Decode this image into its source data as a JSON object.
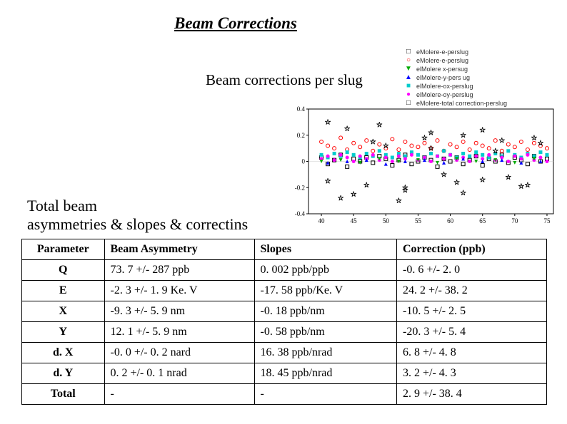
{
  "title": "Beam Corrections",
  "subtitle": "Beam corrections per slug",
  "section_title_line1": "Total beam",
  "section_title_line2": "asymmetries & slopes & correctins",
  "legend": {
    "items": [
      {
        "marker": "□",
        "color": "#000000",
        "label": "eMolere-e-perslug"
      },
      {
        "marker": "○",
        "color": "#ff0000",
        "label": "eMolere-e-perslug"
      },
      {
        "marker": "▼",
        "color": "#00aa00",
        "label": "elMolere x-persug"
      },
      {
        "marker": "▲",
        "color": "#0000ff",
        "label": "elMolere-y-pers ug"
      },
      {
        "marker": "■",
        "color": "#00cccc",
        "label": "elMolere-ox-perslug"
      },
      {
        "marker": "●",
        "color": "#ff00ff",
        "label": "elMolere-oy-perslug"
      },
      {
        "marker": "□",
        "color": "#000000",
        "label": "eMolere-total correction-perslug"
      }
    ]
  },
  "chart": {
    "type": "scatter",
    "xlim": [
      38,
      76
    ],
    "ylim": [
      -0.4,
      0.4
    ],
    "xticks": [
      40,
      45,
      50,
      55,
      60,
      65,
      70,
      75
    ],
    "yticks": [
      -0.4,
      -0.2,
      0,
      0.2,
      0.4
    ],
    "yticks_labels": [
      "-0.4",
      "-0.2",
      "0",
      "0.2",
      "0.4"
    ],
    "grid_color": "#e0e0e0",
    "background_color": "#ffffff",
    "axis_color": "#000000",
    "tick_fontsize": 9,
    "series": [
      {
        "name": "black-open-square",
        "color": "#000000",
        "marker": "square-open",
        "x": [
          40,
          41,
          42,
          43,
          44,
          45,
          46,
          47,
          48,
          49,
          50,
          51,
          52,
          53,
          54,
          55,
          56,
          57,
          58,
          59,
          60,
          61,
          62,
          63,
          64,
          65,
          66,
          67,
          68,
          69,
          70,
          71,
          72,
          73,
          74,
          75
        ],
        "y": [
          0.03,
          -0.02,
          0.01,
          0.05,
          -0.04,
          0.02,
          0.0,
          0.03,
          -0.01,
          0.04,
          0.02,
          -0.03,
          0.01,
          0.05,
          -0.02,
          0.0,
          0.03,
          0.01,
          -0.04,
          0.02,
          0.0,
          0.03,
          -0.02,
          0.01,
          0.04,
          -0.03,
          0.02,
          0.0,
          0.05,
          -0.01,
          0.03,
          0.01,
          -0.02,
          0.04,
          0.0,
          0.02
        ]
      },
      {
        "name": "red-open-circle",
        "color": "#ff0000",
        "marker": "circle-open",
        "x": [
          40,
          41,
          42,
          43,
          44,
          45,
          46,
          47,
          48,
          49,
          50,
          51,
          52,
          53,
          54,
          55,
          56,
          57,
          58,
          59,
          60,
          61,
          62,
          63,
          64,
          65,
          66,
          67,
          68,
          69,
          70,
          71,
          72,
          73,
          74,
          75
        ],
        "y": [
          0.15,
          0.12,
          0.1,
          0.18,
          0.09,
          0.14,
          0.11,
          0.16,
          0.08,
          0.13,
          0.1,
          0.17,
          0.09,
          0.15,
          0.12,
          0.11,
          0.14,
          0.1,
          0.16,
          0.08,
          0.13,
          0.11,
          0.15,
          0.09,
          0.14,
          0.12,
          0.1,
          0.16,
          0.08,
          0.13,
          0.11,
          0.15,
          0.09,
          0.14,
          0.12,
          0.1
        ]
      },
      {
        "name": "cyan-square",
        "color": "#00cccc",
        "marker": "square",
        "x": [
          40,
          41,
          42,
          43,
          44,
          45,
          46,
          47,
          48,
          49,
          50,
          51,
          52,
          53,
          54,
          55,
          56,
          57,
          58,
          59,
          60,
          61,
          62,
          63,
          64,
          65,
          66,
          67,
          68,
          69,
          70,
          71,
          72,
          73,
          74,
          75
        ],
        "y": [
          0.05,
          0.03,
          0.06,
          0.04,
          0.07,
          0.05,
          0.03,
          0.06,
          0.04,
          0.08,
          0.05,
          0.03,
          0.06,
          0.04,
          0.07,
          0.05,
          0.03,
          0.06,
          0.04,
          0.08,
          0.05,
          0.03,
          0.06,
          0.04,
          0.07,
          0.05,
          0.03,
          0.06,
          0.04,
          0.08,
          0.05,
          0.03,
          0.06,
          0.04,
          0.07,
          0.05
        ]
      },
      {
        "name": "magenta-circle",
        "color": "#ff00ff",
        "marker": "circle",
        "x": [
          40,
          41,
          42,
          43,
          44,
          45,
          46,
          47,
          48,
          49,
          50,
          51,
          52,
          53,
          54,
          55,
          56,
          57,
          58,
          59,
          60,
          61,
          62,
          63,
          64,
          65,
          66,
          67,
          68,
          69,
          70,
          71,
          72,
          73,
          74,
          75
        ],
        "y": [
          0.02,
          0.04,
          0.01,
          0.05,
          0.03,
          0.0,
          0.04,
          0.02,
          0.05,
          0.01,
          0.03,
          0.0,
          0.04,
          0.02,
          0.05,
          0.01,
          0.03,
          0.0,
          0.04,
          0.02,
          0.05,
          0.01,
          0.03,
          0.0,
          0.04,
          0.02,
          0.05,
          0.01,
          0.03,
          0.0,
          0.04,
          0.02,
          0.05,
          0.01,
          0.03,
          0.0
        ]
      },
      {
        "name": "black-star",
        "color": "#000000",
        "marker": "star-open",
        "x": [
          41,
          44,
          47,
          50,
          53,
          56,
          59,
          62,
          65,
          68,
          71,
          74,
          41,
          45,
          49,
          53,
          57,
          61,
          65,
          69,
          73,
          43,
          48,
          52,
          57,
          62,
          67,
          72
        ],
        "y": [
          -0.15,
          0.25,
          -0.18,
          0.12,
          -0.22,
          0.18,
          -0.1,
          0.2,
          -0.14,
          0.16,
          -0.19,
          0.14,
          0.3,
          -0.25,
          0.28,
          -0.2,
          0.22,
          -0.16,
          0.24,
          -0.12,
          0.18,
          -0.28,
          0.15,
          -0.3,
          0.1,
          -0.24,
          0.08,
          -0.18
        ]
      },
      {
        "name": "green-triangle-down",
        "color": "#00aa00",
        "marker": "triangle-down",
        "x": [
          40,
          43,
          46,
          49,
          52,
          55,
          58,
          61,
          64,
          67,
          70,
          73
        ],
        "y": [
          0.0,
          0.01,
          -0.01,
          0.02,
          0.0,
          0.01,
          -0.01,
          0.02,
          0.0,
          0.01,
          -0.01,
          0.02
        ]
      },
      {
        "name": "blue-triangle-up",
        "color": "#0000ff",
        "marker": "triangle-up",
        "x": [
          41,
          44,
          47,
          50,
          53,
          56,
          59,
          62,
          65,
          68,
          71,
          74
        ],
        "y": [
          -0.01,
          0.0,
          0.01,
          -0.02,
          0.0,
          0.01,
          -0.01,
          0.02,
          0.0,
          0.01,
          -0.01,
          0.0
        ]
      }
    ]
  },
  "table": {
    "headers": [
      "Parameter",
      "Beam Asymmetry",
      "Slopes",
      "Correction (ppb)"
    ],
    "rows": [
      [
        "Q",
        "73. 7 +/- 287  ppb",
        "0. 002  ppb/ppb",
        "-0. 6 +/- 2. 0"
      ],
      [
        "E",
        "-2. 3 +/- 1. 9     Ke. V",
        "-17. 58 ppb/Ke. V",
        "24. 2 +/- 38. 2"
      ],
      [
        "X",
        "-9. 3 +/- 5. 9     nm",
        "-0. 18   ppb/nm",
        "-10. 5 +/- 2. 5"
      ],
      [
        "Y",
        "12. 1 +/-  5. 9  nm",
        "-0. 58   ppb/nm",
        "-20. 3 +/- 5. 4"
      ],
      [
        "d. X",
        "-0. 0 +/-  0. 2  nard",
        "16. 38  ppb/nrad",
        "6. 8 +/- 4. 8"
      ],
      [
        "d. Y",
        "0. 2 +/-  0. 1   nrad",
        "18. 45  ppb/nrad",
        "3. 2 +/- 4. 3"
      ],
      [
        "Total",
        "-",
        "-",
        "2. 9 +/- 38. 4"
      ]
    ]
  }
}
